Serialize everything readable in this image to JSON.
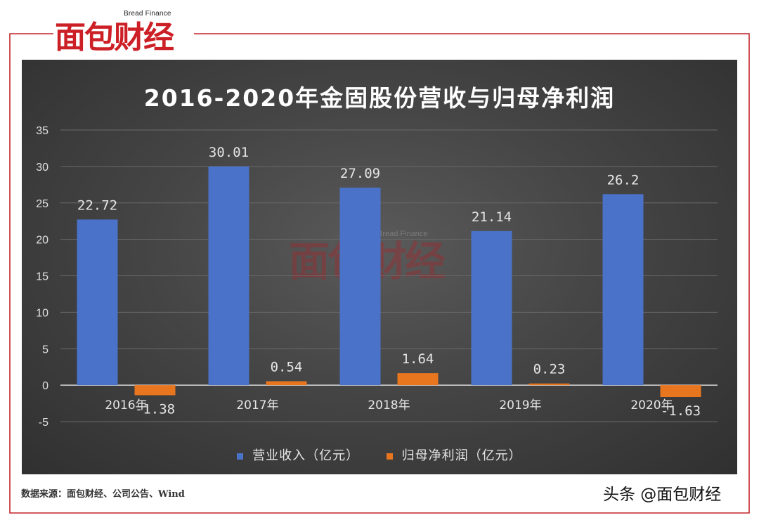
{
  "brand": {
    "english_name": "Bread Finance",
    "chinese_name": "面包财经"
  },
  "colors": {
    "frame": "#c1272d",
    "brand_red": "#cc1f26",
    "revenue_bar": "#4a72c9",
    "profit_bar": "#e8761f",
    "panel_bg": "#3f3f3f"
  },
  "chart_data": {
    "type": "bar",
    "title": "2016-2020年金固股份营收与归母净利润",
    "categories": [
      "2016年",
      "2017年",
      "2018年",
      "2019年",
      "2020年"
    ],
    "series": [
      {
        "name": "营业收入（亿元）",
        "values": [
          22.72,
          30.01,
          27.09,
          21.14,
          26.2
        ],
        "labels": [
          "22.72",
          "30.01",
          "27.09",
          "21.14",
          "26.2"
        ],
        "color": "#4a72c9"
      },
      {
        "name": "归母净利润（亿元）",
        "values": [
          -1.38,
          0.54,
          1.64,
          0.23,
          -1.63
        ],
        "labels": [
          "-1.38",
          "0.54",
          "1.64",
          "0.23",
          "-1.63"
        ],
        "color": "#e8761f"
      }
    ],
    "yticks": [
      "35",
      "30",
      "25",
      "20",
      "15",
      "10",
      "5",
      "0",
      "-5"
    ],
    "ylim": [
      -5,
      35
    ],
    "grid": true,
    "legend_position": "bottom"
  },
  "source_text": "数据来源：面包财经、公司公告、Wind",
  "credit_text": "头条 @面包财经"
}
